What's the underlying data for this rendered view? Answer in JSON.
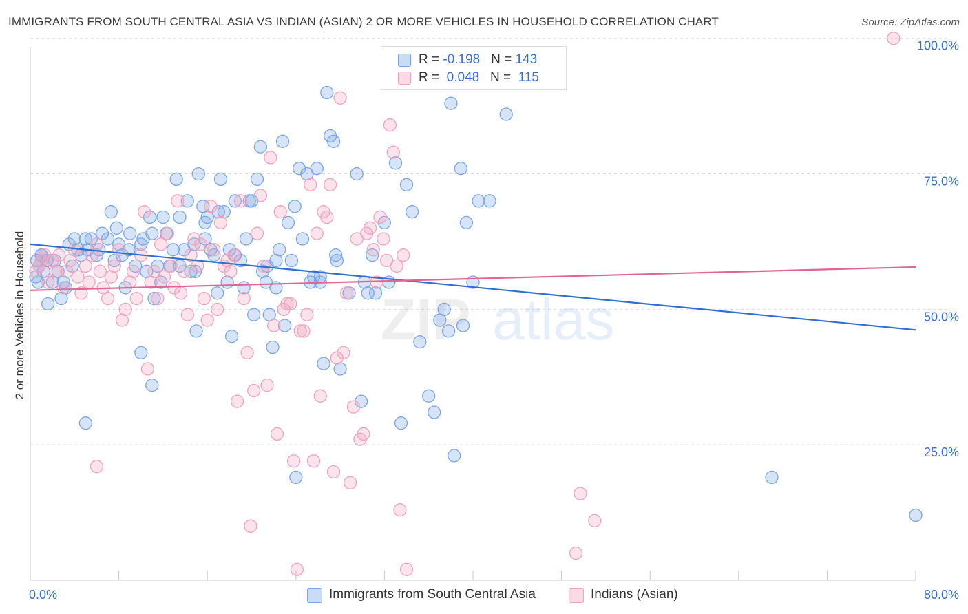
{
  "title": "IMMIGRANTS FROM SOUTH CENTRAL ASIA VS INDIAN (ASIAN) 2 OR MORE VEHICLES IN HOUSEHOLD CORRELATION CHART",
  "source": "Source: ZipAtlas.com",
  "watermark": {
    "part1": "ZIP",
    "part2": "atlas"
  },
  "stats": [
    {
      "r_label": "R = ",
      "r_value": "-0.198",
      "n_label": "N = ",
      "n_value": "143",
      "color": "#7aa6e6"
    },
    {
      "r_label": "R = ",
      "r_value": "0.048",
      "n_label": "N = ",
      "n_value": "115",
      "color": "#f0a3bd"
    }
  ],
  "chart_data": {
    "type": "scatter",
    "ylabel": "2 or more Vehicles in Household",
    "xlim": [
      0,
      80
    ],
    "ylim": [
      0,
      102
    ],
    "x_tick_labels": [
      "0.0%",
      "80.0%"
    ],
    "y_ticks": [
      25,
      50,
      75,
      100
    ],
    "y_tick_labels": [
      "25.0%",
      "50.0%",
      "75.0%",
      "100.0%"
    ],
    "grid": "horizontal dashed",
    "legend_position": "bottom-center",
    "series": [
      {
        "name": "Immigrants from South Central Asia",
        "color": "#7aa6e6",
        "line_color": "#2f6fd1",
        "trend": {
          "x": [
            0,
            80
          ],
          "y": [
            62.0,
            46.2
          ]
        },
        "points": [
          [
            0.5,
            56
          ],
          [
            0.8,
            58
          ],
          [
            1.0,
            60
          ],
          [
            1.2,
            57
          ],
          [
            1.5,
            59
          ],
          [
            0.7,
            55
          ],
          [
            1.6,
            51
          ],
          [
            2.0,
            55
          ],
          [
            2.2,
            59
          ],
          [
            2.5,
            57
          ],
          [
            3.0,
            55
          ],
          [
            3.2,
            54
          ],
          [
            3.5,
            62
          ],
          [
            4.0,
            63
          ],
          [
            4.3,
            61
          ],
          [
            4.6,
            60
          ],
          [
            5.0,
            63
          ],
          [
            5.2,
            61
          ],
          [
            5.5,
            63
          ],
          [
            6.0,
            60
          ],
          [
            6.2,
            61
          ],
          [
            6.5,
            64
          ],
          [
            7.0,
            63
          ],
          [
            7.3,
            68
          ],
          [
            7.6,
            59
          ],
          [
            7.8,
            65
          ],
          [
            8.0,
            62
          ],
          [
            8.3,
            60
          ],
          [
            8.6,
            54
          ],
          [
            9.0,
            64
          ],
          [
            9.5,
            58
          ],
          [
            10.0,
            62
          ],
          [
            10.2,
            63
          ],
          [
            10.5,
            57
          ],
          [
            10.8,
            67
          ],
          [
            11.0,
            64
          ],
          [
            11.2,
            52
          ],
          [
            11.5,
            58
          ],
          [
            11.8,
            55
          ],
          [
            12.0,
            67
          ],
          [
            12.3,
            64
          ],
          [
            12.6,
            58
          ],
          [
            12.9,
            61
          ],
          [
            13.2,
            74
          ],
          [
            13.5,
            67
          ],
          [
            13.9,
            61
          ],
          [
            14.2,
            70
          ],
          [
            14.5,
            57
          ],
          [
            14.8,
            62
          ],
          [
            15.0,
            46
          ],
          [
            15.2,
            75
          ],
          [
            15.6,
            69
          ],
          [
            15.8,
            66
          ],
          [
            16.0,
            67
          ],
          [
            16.3,
            61
          ],
          [
            16.6,
            60
          ],
          [
            16.9,
            53
          ],
          [
            17.2,
            74
          ],
          [
            17.5,
            68
          ],
          [
            17.8,
            55
          ],
          [
            18.0,
            61
          ],
          [
            18.2,
            45
          ],
          [
            18.5,
            60
          ],
          [
            19.0,
            59
          ],
          [
            19.3,
            54
          ],
          [
            19.5,
            63
          ],
          [
            19.8,
            70
          ],
          [
            20.0,
            70
          ],
          [
            20.2,
            49
          ],
          [
            20.5,
            74
          ],
          [
            20.8,
            80
          ],
          [
            21.0,
            57
          ],
          [
            21.3,
            55
          ],
          [
            21.6,
            49
          ],
          [
            21.9,
            43
          ],
          [
            22.2,
            59
          ],
          [
            22.5,
            61
          ],
          [
            22.8,
            81
          ],
          [
            23.0,
            47
          ],
          [
            23.3,
            66
          ],
          [
            23.6,
            59
          ],
          [
            23.9,
            69
          ],
          [
            24.3,
            76
          ],
          [
            24.6,
            63
          ],
          [
            25.0,
            75
          ],
          [
            25.3,
            55
          ],
          [
            25.6,
            56
          ],
          [
            25.9,
            76
          ],
          [
            26.2,
            56
          ],
          [
            26.5,
            40
          ],
          [
            26.8,
            90
          ],
          [
            27.1,
            82
          ],
          [
            27.4,
            81
          ],
          [
            27.7,
            59
          ],
          [
            28.0,
            39
          ],
          [
            5.0,
            29
          ],
          [
            10.0,
            42
          ],
          [
            11.0,
            36
          ],
          [
            13.5,
            58
          ],
          [
            14.9,
            57
          ],
          [
            15.8,
            63
          ],
          [
            17.0,
            68
          ],
          [
            18.5,
            70
          ],
          [
            21.4,
            58
          ],
          [
            22.2,
            54
          ],
          [
            24.0,
            19
          ],
          [
            26.2,
            55
          ],
          [
            27.6,
            60
          ],
          [
            28.8,
            53
          ],
          [
            29.5,
            75
          ],
          [
            29.9,
            33
          ],
          [
            30.2,
            55
          ],
          [
            30.5,
            53
          ],
          [
            30.9,
            60
          ],
          [
            31.2,
            53
          ],
          [
            32.0,
            66
          ],
          [
            32.4,
            55
          ],
          [
            33.0,
            77
          ],
          [
            33.5,
            29
          ],
          [
            34.0,
            73
          ],
          [
            34.5,
            68
          ],
          [
            35.2,
            44
          ],
          [
            36.0,
            34
          ],
          [
            36.5,
            31
          ],
          [
            37.0,
            48
          ],
          [
            37.4,
            50
          ],
          [
            37.8,
            46
          ],
          [
            38.0,
            88
          ],
          [
            38.3,
            23
          ],
          [
            38.9,
            76
          ],
          [
            39.1,
            47
          ],
          [
            39.4,
            66
          ],
          [
            40.0,
            55
          ],
          [
            40.5,
            70
          ],
          [
            41.5,
            70
          ],
          [
            43.0,
            86
          ],
          [
            1.0,
            60
          ],
          [
            2.8,
            52
          ],
          [
            3.8,
            58
          ],
          [
            8.9,
            61
          ],
          [
            67.0,
            19
          ],
          [
            80.0,
            12
          ],
          [
            0.6,
            59
          ]
        ]
      },
      {
        "name": "Indians (Asian)",
        "color": "#f0a3bd",
        "line_color": "#e06592",
        "trend": {
          "x": [
            0,
            80
          ],
          "y": [
            53.5,
            57.8
          ]
        },
        "points": [
          [
            0.5,
            57
          ],
          [
            0.8,
            58
          ],
          [
            1.0,
            59
          ],
          [
            1.3,
            60
          ],
          [
            1.6,
            55
          ],
          [
            2.0,
            59
          ],
          [
            2.3,
            57
          ],
          [
            2.6,
            60
          ],
          [
            3.0,
            54
          ],
          [
            3.3,
            57
          ],
          [
            3.6,
            59
          ],
          [
            4.0,
            61
          ],
          [
            4.3,
            56
          ],
          [
            4.6,
            53
          ],
          [
            5.0,
            58
          ],
          [
            5.3,
            55
          ],
          [
            5.6,
            60
          ],
          [
            6.0,
            62
          ],
          [
            6.3,
            57
          ],
          [
            6.6,
            54
          ],
          [
            7.0,
            52
          ],
          [
            7.3,
            56
          ],
          [
            7.6,
            58
          ],
          [
            8.0,
            61
          ],
          [
            8.3,
            48
          ],
          [
            8.6,
            50
          ],
          [
            9.0,
            55
          ],
          [
            9.3,
            57
          ],
          [
            9.6,
            52
          ],
          [
            10.0,
            60
          ],
          [
            10.3,
            68
          ],
          [
            10.6,
            39
          ],
          [
            10.9,
            55
          ],
          [
            11.2,
            57
          ],
          [
            11.5,
            52
          ],
          [
            11.8,
            62
          ],
          [
            12.1,
            56
          ],
          [
            12.4,
            64
          ],
          [
            12.7,
            58
          ],
          [
            13.0,
            54
          ],
          [
            13.3,
            70
          ],
          [
            13.6,
            53
          ],
          [
            13.9,
            57
          ],
          [
            14.2,
            49
          ],
          [
            14.5,
            60
          ],
          [
            14.8,
            63
          ],
          [
            15.1,
            58
          ],
          [
            15.4,
            62
          ],
          [
            15.7,
            52
          ],
          [
            16.0,
            48
          ],
          [
            16.3,
            69
          ],
          [
            16.6,
            61
          ],
          [
            16.9,
            50
          ],
          [
            17.2,
            66
          ],
          [
            17.5,
            58
          ],
          [
            17.8,
            59
          ],
          [
            18.1,
            57
          ],
          [
            18.4,
            60
          ],
          [
            18.7,
            33
          ],
          [
            19.0,
            70
          ],
          [
            19.3,
            52
          ],
          [
            19.6,
            42
          ],
          [
            19.9,
            10
          ],
          [
            20.2,
            35
          ],
          [
            20.5,
            64
          ],
          [
            20.8,
            71
          ],
          [
            21.1,
            58
          ],
          [
            21.4,
            36
          ],
          [
            21.7,
            78
          ],
          [
            22.0,
            47
          ],
          [
            22.3,
            27
          ],
          [
            22.6,
            68
          ],
          [
            22.9,
            50
          ],
          [
            23.2,
            51
          ],
          [
            23.5,
            51
          ],
          [
            23.8,
            22
          ],
          [
            24.1,
            2
          ],
          [
            24.4,
            46
          ],
          [
            24.7,
            46
          ],
          [
            25.0,
            49
          ],
          [
            25.3,
            73
          ],
          [
            25.6,
            22
          ],
          [
            25.9,
            64
          ],
          [
            26.2,
            34
          ],
          [
            26.5,
            68
          ],
          [
            26.8,
            67
          ],
          [
            27.1,
            73
          ],
          [
            27.4,
            20
          ],
          [
            27.7,
            41
          ],
          [
            28.0,
            89
          ],
          [
            28.3,
            42
          ],
          [
            28.6,
            53
          ],
          [
            28.9,
            18
          ],
          [
            29.2,
            32
          ],
          [
            29.5,
            63
          ],
          [
            29.8,
            26
          ],
          [
            30.1,
            27
          ],
          [
            30.4,
            64
          ],
          [
            30.7,
            65
          ],
          [
            31.0,
            61
          ],
          [
            31.3,
            55
          ],
          [
            31.6,
            67
          ],
          [
            31.9,
            63
          ],
          [
            32.2,
            59
          ],
          [
            32.5,
            84
          ],
          [
            32.8,
            79
          ],
          [
            33.1,
            58
          ],
          [
            33.4,
            13
          ],
          [
            33.7,
            60
          ],
          [
            34.0,
            2
          ],
          [
            6.0,
            21
          ],
          [
            51.0,
            11
          ],
          [
            49.3,
            5
          ],
          [
            49.7,
            16
          ],
          [
            78.0,
            100
          ]
        ]
      }
    ]
  }
}
